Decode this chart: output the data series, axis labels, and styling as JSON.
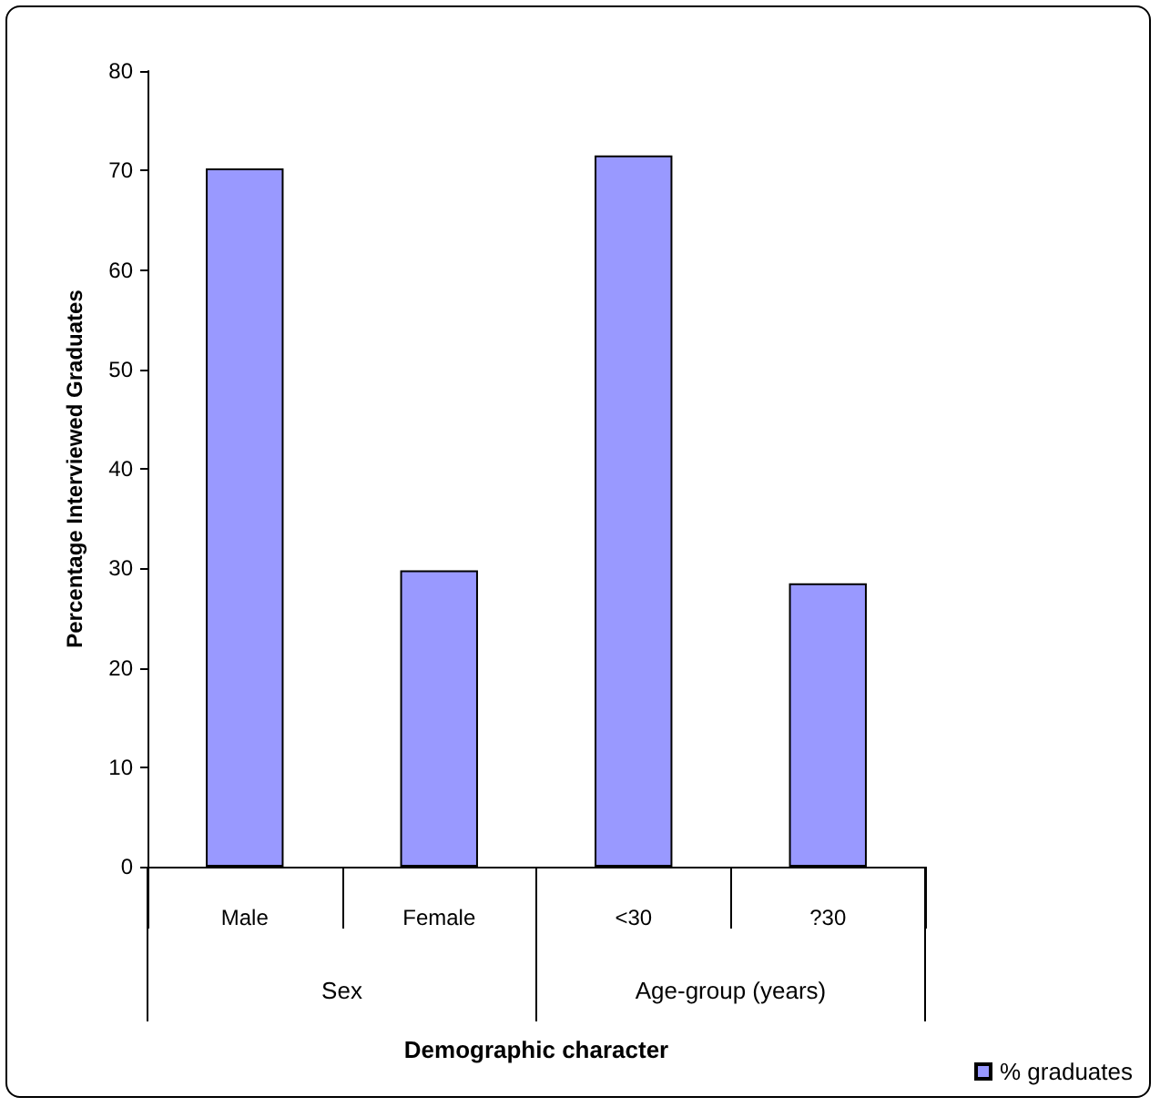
{
  "chart_data": {
    "type": "bar",
    "xlabel": "Demographic character",
    "ylabel": "Percentage Interviewed Graduates",
    "categories": [
      "Male",
      "Female",
      "<30",
      "?30"
    ],
    "series": [
      {
        "name": "% graduates",
        "color": "#9999ff",
        "values": [
          70.2,
          29.8,
          71.5,
          28.5
        ]
      }
    ],
    "ylim": [
      0,
      80
    ],
    "yticks": [
      0,
      10,
      20,
      30,
      40,
      50,
      60,
      70,
      80
    ],
    "grid": false,
    "legend": "bottom right",
    "annotations": [
      "Sex",
      "Age-group (years)"
    ]
  }
}
